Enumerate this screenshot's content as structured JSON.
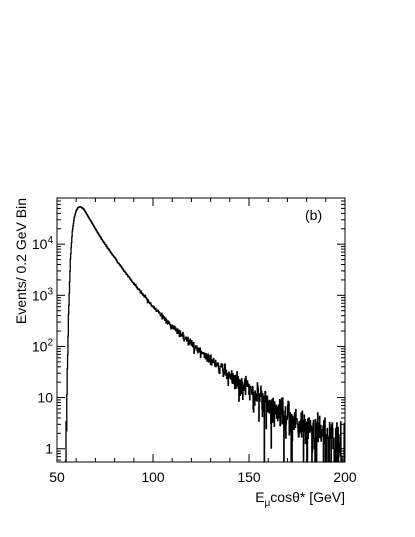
{
  "chart_data": {
    "type": "line",
    "title": "",
    "panel_label": "(b)",
    "xlabel": {
      "main": "E",
      "sub": "μ",
      "rest": "cosθ* [GeV]"
    },
    "ylabel": "Events/ 0.2 GeV Bin",
    "xlim": [
      50,
      200
    ],
    "ylim": [
      0.55,
      80000
    ],
    "yscale": "log",
    "grid": false,
    "legend": "none",
    "line_color": "#000000",
    "bin_width": 0.2,
    "x_ticks": [
      {
        "value": 50,
        "label": "50"
      },
      {
        "value": 100,
        "label": "100"
      },
      {
        "value": 150,
        "label": "150"
      },
      {
        "value": 200,
        "label": "200"
      }
    ],
    "y_ticks": [
      {
        "value": 1,
        "base": "1",
        "exp": ""
      },
      {
        "value": 10,
        "base": "10",
        "exp": ""
      },
      {
        "value": 100,
        "base": "10",
        "exp": "2"
      },
      {
        "value": 1000,
        "base": "10",
        "exp": "3"
      },
      {
        "value": 10000,
        "base": "10",
        "exp": "4"
      }
    ],
    "series": [
      {
        "x": [
          54.5,
          55,
          55.5,
          56,
          57,
          58,
          59,
          60,
          61,
          62,
          63,
          64,
          65,
          66,
          68,
          70,
          72,
          75,
          80,
          85,
          90,
          95,
          100,
          105,
          110,
          115,
          120,
          125,
          130,
          135,
          140,
          145,
          150,
          155,
          160,
          165,
          170,
          175,
          180,
          185,
          190,
          195,
          200
        ],
        "y": [
          0.6,
          4,
          40,
          400,
          5000,
          18000,
          33000,
          45000,
          52000,
          54000,
          52000,
          48000,
          42000,
          36000,
          27000,
          20000,
          15000,
          10000,
          5500,
          3000,
          1700,
          1000,
          600,
          380,
          250,
          170,
          115,
          78,
          52,
          38,
          28,
          20,
          15,
          11,
          8,
          6,
          4.5,
          3.4,
          2.5,
          2.0,
          1.6,
          1.3,
          1.1
        ]
      }
    ]
  }
}
